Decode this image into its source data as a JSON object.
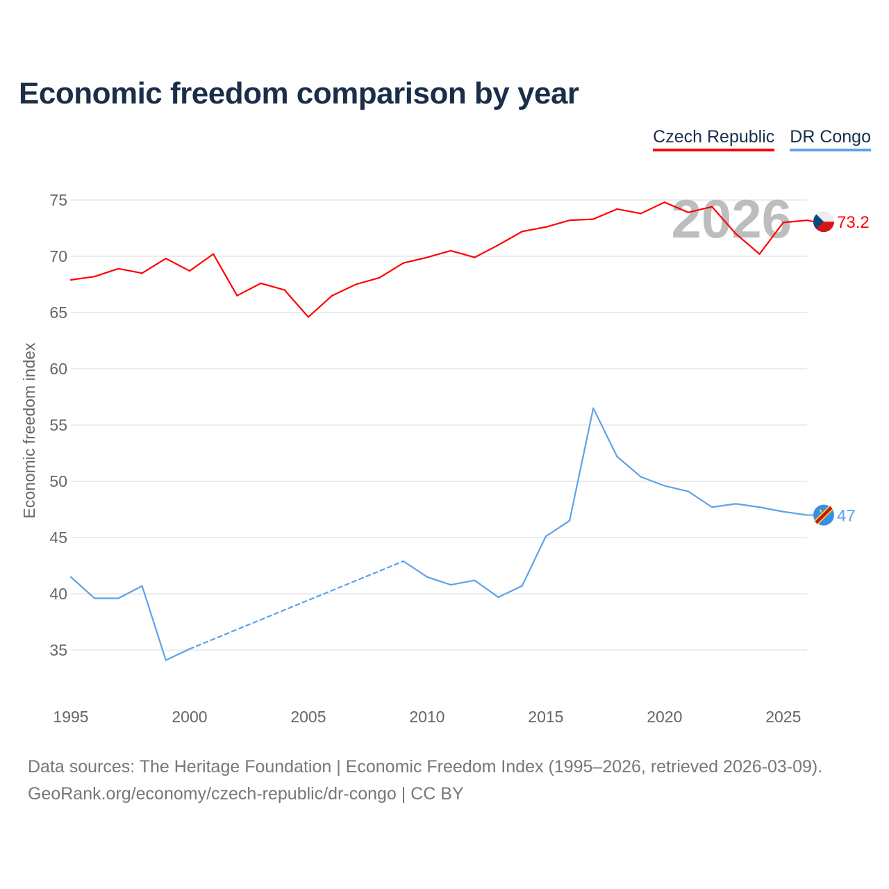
{
  "chart_data": {
    "type": "line",
    "title": "Economic freedom comparison by year",
    "xlabel": "",
    "ylabel": "Economic freedom index",
    "xlim": [
      1995,
      2026
    ],
    "ylim": [
      31,
      77
    ],
    "x_ticks": [
      1995,
      2000,
      2005,
      2010,
      2015,
      2020,
      2025
    ],
    "y_ticks": [
      35,
      40,
      45,
      50,
      55,
      60,
      65,
      70,
      75
    ],
    "grid": true,
    "legend_position": "top-right",
    "watermark_year": "2026",
    "series": [
      {
        "name": "Czech Republic",
        "color": "#ff0000",
        "end_label": "73.2",
        "x": [
          1995,
          1996,
          1997,
          1998,
          1999,
          2000,
          2001,
          2002,
          2003,
          2004,
          2005,
          2006,
          2007,
          2008,
          2009,
          2010,
          2011,
          2012,
          2013,
          2014,
          2015,
          2016,
          2017,
          2018,
          2019,
          2020,
          2021,
          2022,
          2023,
          2024,
          2025,
          2026
        ],
        "values": [
          67.9,
          68.2,
          68.9,
          68.5,
          69.8,
          68.7,
          70.2,
          66.5,
          67.6,
          67.0,
          64.6,
          66.5,
          67.5,
          68.1,
          69.4,
          69.9,
          70.5,
          69.9,
          71.0,
          72.2,
          72.6,
          73.2,
          73.3,
          74.2,
          73.8,
          74.8,
          73.9,
          74.4,
          72.0,
          70.2,
          73.0,
          73.2
        ]
      },
      {
        "name": "DR Congo",
        "color": "#5ba3ea",
        "end_label": "47",
        "x": [
          1995,
          1996,
          1997,
          1998,
          1999,
          2000,
          2009,
          2010,
          2011,
          2012,
          2013,
          2014,
          2015,
          2016,
          2017,
          2018,
          2019,
          2020,
          2021,
          2022,
          2023,
          2024,
          2025,
          2026
        ],
        "values": [
          41.5,
          39.6,
          39.6,
          40.7,
          34.1,
          35.1,
          42.9,
          41.5,
          40.8,
          41.2,
          39.7,
          40.7,
          45.1,
          46.5,
          56.5,
          52.2,
          50.4,
          49.6,
          49.1,
          47.7,
          48.0,
          47.7,
          47.3,
          47.0
        ],
        "gap_interpolated": [
          2000,
          2009
        ]
      }
    ]
  },
  "footer": {
    "line1": "Data sources: The Heritage Foundation | Economic Freedom Index (1995–2026, retrieved 2026-03-09).",
    "line2": "GeoRank.org/economy/czech-republic/dr-congo | CC BY"
  }
}
